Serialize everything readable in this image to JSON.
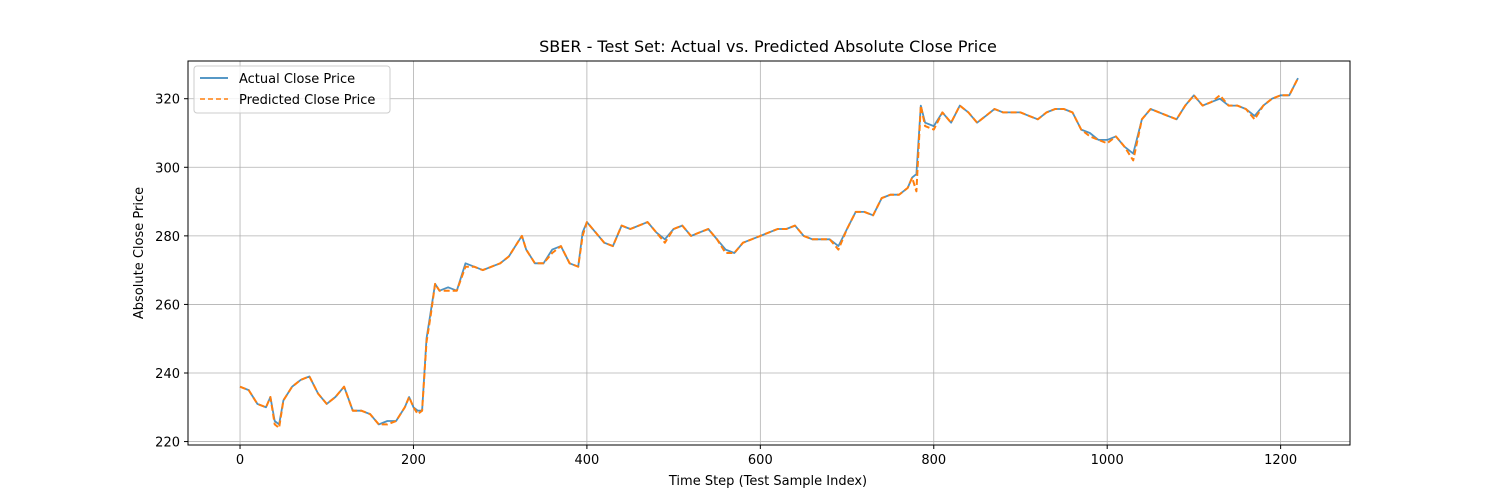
{
  "chart_data": {
    "type": "line",
    "title": "SBER - Test Set: Actual vs. Predicted Absolute Close Price",
    "xlabel": "Time Step (Test Sample Index)",
    "ylabel": "Absolute Close Price",
    "xlim": [
      -60,
      1280
    ],
    "ylim": [
      219,
      331
    ],
    "xticks": [
      0,
      200,
      400,
      600,
      800,
      1000,
      1200
    ],
    "yticks": [
      220,
      240,
      260,
      280,
      300,
      320
    ],
    "grid": true,
    "legend_position": "upper-left",
    "series": [
      {
        "name": "Actual Close Price",
        "color": "#1f77b4",
        "style": "solid",
        "x": [
          0,
          10,
          20,
          30,
          35,
          40,
          45,
          50,
          60,
          70,
          80,
          90,
          100,
          110,
          120,
          130,
          140,
          150,
          160,
          170,
          180,
          190,
          195,
          200,
          205,
          210,
          215,
          220,
          225,
          230,
          240,
          250,
          260,
          270,
          280,
          290,
          300,
          310,
          320,
          325,
          330,
          340,
          350,
          360,
          370,
          380,
          390,
          395,
          400,
          410,
          420,
          430,
          440,
          450,
          460,
          470,
          480,
          490,
          500,
          510,
          520,
          530,
          540,
          550,
          560,
          570,
          580,
          590,
          600,
          610,
          620,
          630,
          640,
          650,
          660,
          670,
          680,
          690,
          700,
          710,
          720,
          730,
          740,
          750,
          760,
          770,
          775,
          780,
          785,
          790,
          800,
          810,
          820,
          830,
          840,
          850,
          860,
          870,
          880,
          890,
          900,
          910,
          920,
          930,
          940,
          950,
          960,
          970,
          980,
          990,
          1000,
          1010,
          1020,
          1030,
          1040,
          1050,
          1060,
          1070,
          1080,
          1090,
          1100,
          1110,
          1120,
          1130,
          1140,
          1150,
          1160,
          1170,
          1180,
          1190,
          1200,
          1210,
          1220
        ],
        "y": [
          236,
          235,
          231,
          230,
          233,
          226,
          225,
          232,
          236,
          238,
          239,
          234,
          231,
          233,
          236,
          229,
          229,
          228,
          225,
          226,
          226,
          230,
          233,
          230,
          229,
          229,
          250,
          258,
          266,
          264,
          265,
          264,
          272,
          271,
          270,
          271,
          272,
          274,
          278,
          280,
          276,
          272,
          272,
          276,
          277,
          272,
          271,
          281,
          284,
          281,
          278,
          277,
          283,
          282,
          283,
          284,
          281,
          279,
          282,
          283,
          280,
          281,
          282,
          279,
          276,
          275,
          278,
          279,
          280,
          281,
          282,
          282,
          283,
          280,
          279,
          279,
          279,
          277,
          282,
          287,
          287,
          286,
          291,
          292,
          292,
          294,
          297,
          298,
          318,
          313,
          312,
          316,
          313,
          318,
          316,
          313,
          315,
          317,
          316,
          316,
          316,
          315,
          314,
          316,
          317,
          317,
          316,
          311,
          310,
          308,
          308,
          309,
          306,
          304,
          314,
          317,
          316,
          315,
          314,
          318,
          321,
          318,
          319,
          320,
          318,
          318,
          317,
          315,
          318,
          320,
          321,
          321,
          326
        ]
      },
      {
        "name": "Predicted Close Price",
        "color": "#ff7f0e",
        "style": "dashed",
        "x": [
          0,
          10,
          20,
          30,
          35,
          40,
          45,
          50,
          60,
          70,
          80,
          90,
          100,
          110,
          120,
          130,
          140,
          150,
          160,
          170,
          180,
          190,
          195,
          200,
          205,
          210,
          215,
          220,
          225,
          230,
          240,
          250,
          260,
          270,
          280,
          290,
          300,
          310,
          320,
          325,
          330,
          340,
          350,
          360,
          370,
          380,
          390,
          395,
          400,
          410,
          420,
          430,
          440,
          450,
          460,
          470,
          480,
          490,
          500,
          510,
          520,
          530,
          540,
          550,
          560,
          570,
          580,
          590,
          600,
          610,
          620,
          630,
          640,
          650,
          660,
          670,
          680,
          690,
          700,
          710,
          720,
          730,
          740,
          750,
          760,
          770,
          775,
          780,
          785,
          790,
          800,
          810,
          820,
          830,
          840,
          850,
          860,
          870,
          880,
          890,
          900,
          910,
          920,
          930,
          940,
          950,
          960,
          970,
          980,
          990,
          1000,
          1010,
          1020,
          1030,
          1040,
          1050,
          1060,
          1070,
          1080,
          1090,
          1100,
          1110,
          1120,
          1130,
          1140,
          1150,
          1160,
          1170,
          1180,
          1190,
          1200,
          1210,
          1220
        ],
        "y": [
          236,
          235,
          231,
          230,
          233,
          225,
          224,
          232,
          236,
          238,
          239,
          234,
          231,
          233,
          236,
          229,
          229,
          228,
          225,
          225,
          226,
          230,
          233,
          230,
          228,
          229,
          249,
          257,
          266,
          264,
          264,
          264,
          271,
          271,
          270,
          271,
          272,
          274,
          278,
          280,
          276,
          272,
          272,
          275,
          277,
          272,
          271,
          280,
          284,
          281,
          278,
          277,
          283,
          282,
          283,
          284,
          281,
          278,
          282,
          283,
          280,
          281,
          282,
          279,
          275,
          275,
          278,
          279,
          280,
          281,
          282,
          282,
          283,
          280,
          279,
          279,
          279,
          276,
          282,
          287,
          287,
          286,
          291,
          292,
          292,
          294,
          297,
          293,
          318,
          312,
          311,
          316,
          313,
          318,
          316,
          313,
          315,
          317,
          316,
          316,
          316,
          315,
          314,
          316,
          317,
          317,
          316,
          311,
          309,
          308,
          307,
          309,
          306,
          302,
          314,
          317,
          316,
          315,
          314,
          318,
          321,
          318,
          319,
          321,
          318,
          318,
          317,
          314,
          318,
          320,
          321,
          321,
          326
        ]
      }
    ]
  }
}
